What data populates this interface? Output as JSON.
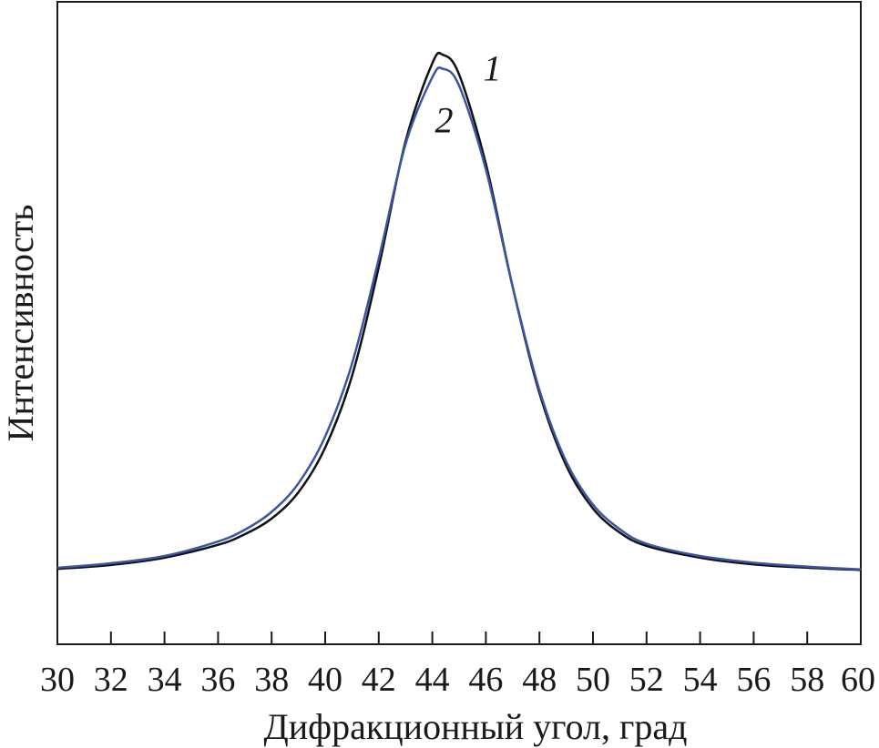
{
  "chart_data": {
    "type": "line",
    "title": "",
    "xlabel": "Дифракционный угол, град",
    "ylabel": "Интенсивность",
    "xlim": [
      30,
      60
    ],
    "ylim": [
      0,
      1.15
    ],
    "x_ticks": [
      "30",
      "32",
      "34",
      "36",
      "38",
      "40",
      "42",
      "44",
      "46",
      "48",
      "50",
      "52",
      "54",
      "56",
      "58",
      "60"
    ],
    "y_ticks_shown": false,
    "grid": false,
    "legend": "none",
    "x": [
      30,
      32,
      34,
      36,
      37,
      38,
      39,
      40,
      41,
      42,
      43,
      44,
      44.4,
      45,
      46,
      47,
      48,
      49,
      50,
      51,
      52,
      54,
      56,
      58,
      60
    ],
    "series": [
      {
        "label": "1",
        "color": "#111111",
        "values": [
          0.135,
          0.142,
          0.155,
          0.178,
          0.197,
          0.225,
          0.272,
          0.352,
          0.48,
          0.675,
          0.9,
          1.04,
          1.055,
          1.02,
          0.86,
          0.64,
          0.45,
          0.32,
          0.243,
          0.2,
          0.176,
          0.155,
          0.143,
          0.137,
          0.133
        ]
      },
      {
        "label": "2",
        "color": "#3a55a4",
        "values": [
          0.137,
          0.145,
          0.158,
          0.184,
          0.205,
          0.237,
          0.288,
          0.372,
          0.502,
          0.69,
          0.895,
          1.015,
          1.03,
          1.0,
          0.85,
          0.64,
          0.455,
          0.327,
          0.25,
          0.206,
          0.18,
          0.158,
          0.146,
          0.139,
          0.134
        ]
      }
    ]
  }
}
